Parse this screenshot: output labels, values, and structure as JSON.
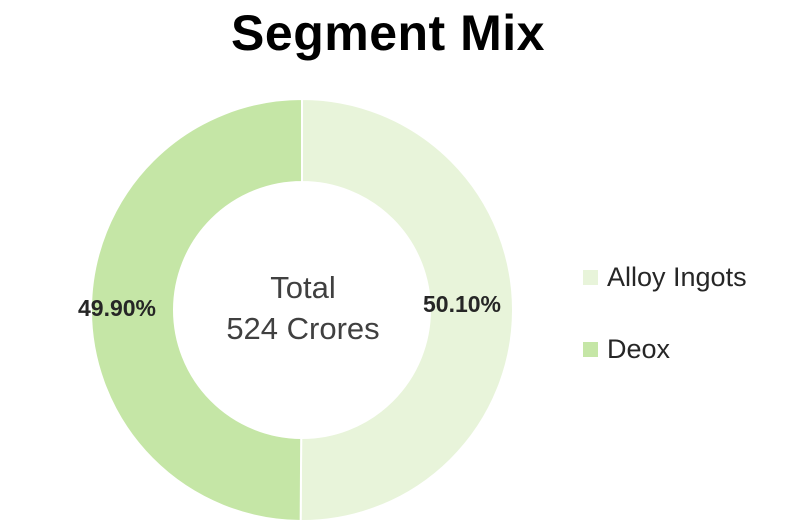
{
  "chart_data": {
    "type": "pie",
    "variant": "donut",
    "title": "Segment Mix",
    "center_text": [
      "Total",
      "524 Crores"
    ],
    "slices": [
      {
        "label": "Alloy Ingots",
        "value": 50.1,
        "display": "50.10%",
        "color": "#e8f4da"
      },
      {
        "label": "Deox",
        "value": 49.9,
        "display": "49.90%",
        "color": "#c5e6a6"
      }
    ],
    "legend_position": "right"
  }
}
